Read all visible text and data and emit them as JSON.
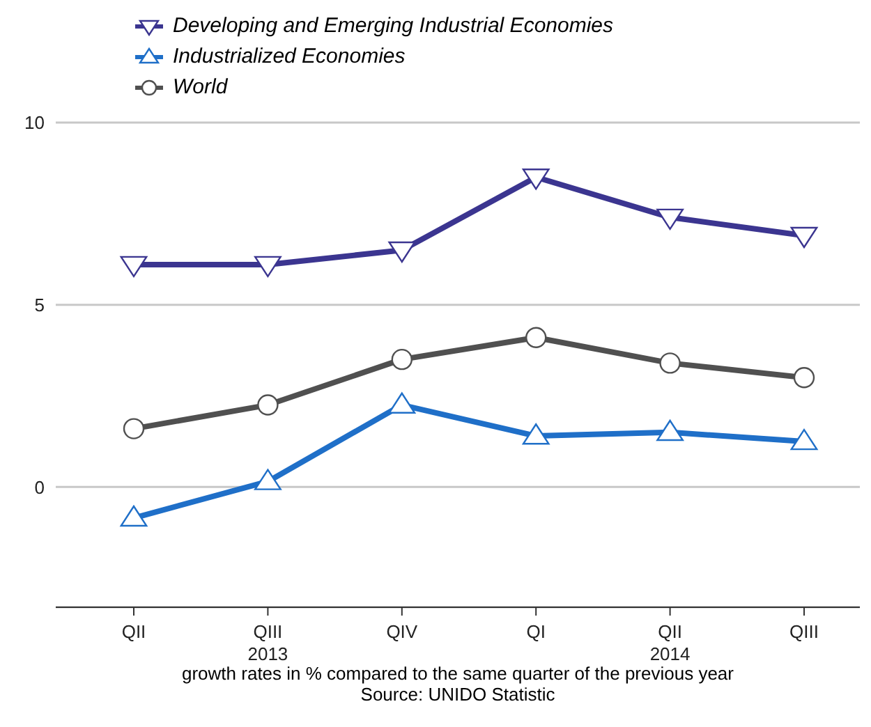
{
  "chart_data": {
    "type": "line",
    "xlabel": "growth rates in % compared to the same quarter of the previous year",
    "annotations": [
      "Source: UNIDO Statistic"
    ],
    "categories": [
      "QII",
      "QIII\n2013",
      "QIV",
      "QI",
      "QII\n2014",
      "QIII"
    ],
    "series": [
      {
        "name": "Developing and Emerging Industrial Economies",
        "color": "#3b3590",
        "marker": "triangle-down",
        "values": [
          6.1,
          6.1,
          6.5,
          8.5,
          7.4,
          6.9
        ]
      },
      {
        "name": "Industrialized Economies",
        "color": "#1f6fc8",
        "marker": "triangle",
        "values": [
          -0.85,
          0.15,
          2.25,
          1.4,
          1.5,
          1.25
        ]
      },
      {
        "name": "World",
        "color": "#505050",
        "marker": "circle",
        "values": [
          1.6,
          2.25,
          3.5,
          4.1,
          3.4,
          3.0
        ]
      }
    ],
    "ylim": [
      -3.3,
      10
    ],
    "yticks": [
      0,
      5,
      10
    ],
    "grid": "y",
    "legend": "top left",
    "line_style": "solid"
  }
}
